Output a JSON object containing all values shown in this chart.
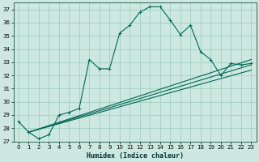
{
  "xlabel": "Humidex (Indice chaleur)",
  "ylabel": "",
  "bg_color": "#cce8e0",
  "grid_color": "#99ccbb",
  "line_color": "#006655",
  "xlim": [
    -0.5,
    23.5
  ],
  "ylim": [
    27,
    37.5
  ],
  "yticks": [
    27,
    28,
    29,
    30,
    31,
    32,
    33,
    34,
    35,
    36,
    37
  ],
  "xticks": [
    0,
    1,
    2,
    3,
    4,
    5,
    6,
    7,
    8,
    9,
    10,
    11,
    12,
    13,
    14,
    15,
    16,
    17,
    18,
    19,
    20,
    21,
    22,
    23
  ],
  "series": [
    {
      "x": [
        0,
        1,
        2,
        3,
        4,
        5,
        6,
        7,
        8,
        9,
        10,
        11,
        12,
        13,
        14,
        15,
        16,
        17,
        18,
        19,
        20,
        21,
        22,
        23
      ],
      "y": [
        28.5,
        27.7,
        27.2,
        27.5,
        29.0,
        29.2,
        29.5,
        33.2,
        32.5,
        32.5,
        35.2,
        35.8,
        36.8,
        37.2,
        37.2,
        36.2,
        35.1,
        35.8,
        33.8,
        33.2,
        32.0,
        32.9,
        32.8,
        32.9
      ],
      "marker": true
    },
    {
      "x": [
        1,
        23
      ],
      "y": [
        27.7,
        33.2
      ],
      "marker": false
    },
    {
      "x": [
        1,
        23
      ],
      "y": [
        27.7,
        32.8
      ],
      "marker": false
    },
    {
      "x": [
        1,
        23
      ],
      "y": [
        27.7,
        32.4
      ],
      "marker": false
    }
  ]
}
